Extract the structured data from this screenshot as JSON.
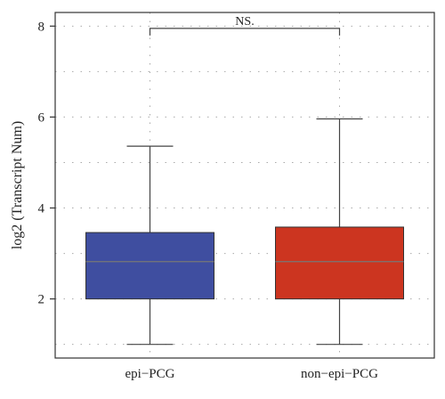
{
  "chart_data": {
    "type": "box",
    "ylabel": "log2 (Transcript Num)",
    "xlabel": "",
    "ylim": [
      0.7,
      8.3
    ],
    "yticks": [
      2,
      4,
      6,
      8
    ],
    "grid": true,
    "categories": [
      "epi−PCG",
      "non−epi−PCG"
    ],
    "boxes": [
      {
        "category": "epi−PCG",
        "whisker_low": 1.0,
        "q1": 2.0,
        "median": 2.82,
        "q3": 3.46,
        "whisker_high": 5.36,
        "color": "#3f4ea0"
      },
      {
        "category": "non−epi−PCG",
        "whisker_low": 1.0,
        "q1": 2.0,
        "median": 2.82,
        "q3": 3.58,
        "whisker_high": 5.96,
        "color": "#cc3520"
      }
    ],
    "annotation": {
      "label": "NS.",
      "y": 7.95,
      "between": [
        0,
        1
      ]
    }
  }
}
